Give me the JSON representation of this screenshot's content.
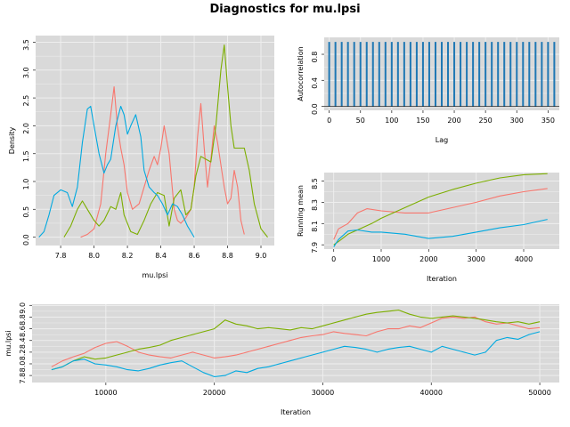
{
  "title": "Diagnostics for mu.lpsi",
  "colors": {
    "chain1": "#f8766d",
    "chain2": "#7cae00",
    "chain3": "#00a9e0",
    "acf": "#1f78b4",
    "panel_bg": "#d9d9d9",
    "grid": "#eeeeee"
  },
  "chart_data": [
    {
      "type": "line",
      "panel": "density",
      "xlabel": "mu.lpsi",
      "ylabel": "Density",
      "xlim": [
        7.65,
        9.08
      ],
      "ylim": [
        -0.15,
        3.62
      ],
      "xticks": [
        "7.8",
        "8.0",
        "8.2",
        "8.4",
        "8.6",
        "8.8",
        "9.0"
      ],
      "yticks": [
        "0.0",
        "0.5",
        "1.0",
        "1.5",
        "2.0",
        "2.5",
        "3.0",
        "3.5"
      ],
      "grid": true,
      "series": [
        {
          "color": "#f8766d",
          "x": [
            7.92,
            7.96,
            8.0,
            8.04,
            8.07,
            8.1,
            8.12,
            8.14,
            8.16,
            8.18,
            8.2,
            8.23,
            8.27,
            8.3,
            8.33,
            8.36,
            8.38,
            8.4,
            8.42,
            8.45,
            8.48,
            8.5,
            8.52,
            8.55,
            8.58,
            8.6,
            8.62,
            8.64,
            8.66,
            8.68,
            8.7,
            8.72,
            8.74,
            8.76,
            8.78,
            8.8,
            8.82,
            8.84,
            8.86,
            8.88,
            8.9
          ],
          "y": [
            0.0,
            0.05,
            0.15,
            0.6,
            1.5,
            2.2,
            2.7,
            2.0,
            1.6,
            1.3,
            0.8,
            0.5,
            0.6,
            0.9,
            1.2,
            1.45,
            1.3,
            1.6,
            2.0,
            1.5,
            0.5,
            0.3,
            0.25,
            0.35,
            0.5,
            0.9,
            1.8,
            2.4,
            1.6,
            0.9,
            1.4,
            2.0,
            1.7,
            1.3,
            0.9,
            0.6,
            0.7,
            1.2,
            0.9,
            0.3,
            0.05
          ]
        },
        {
          "color": "#7cae00",
          "x": [
            7.82,
            7.86,
            7.9,
            7.93,
            7.96,
            8.0,
            8.03,
            8.06,
            8.1,
            8.13,
            8.16,
            8.18,
            8.22,
            8.26,
            8.3,
            8.34,
            8.38,
            8.42,
            8.45,
            8.48,
            8.52,
            8.55,
            8.58,
            8.61,
            8.64,
            8.67,
            8.7,
            8.73,
            8.76,
            8.78,
            8.8,
            8.82,
            8.84,
            8.87,
            8.9,
            8.93,
            8.96,
            9.0,
            9.04
          ],
          "y": [
            0.0,
            0.2,
            0.5,
            0.65,
            0.5,
            0.3,
            0.2,
            0.3,
            0.55,
            0.5,
            0.8,
            0.4,
            0.1,
            0.05,
            0.3,
            0.6,
            0.8,
            0.75,
            0.2,
            0.7,
            0.85,
            0.4,
            0.5,
            1.1,
            1.45,
            1.4,
            1.35,
            2.0,
            3.0,
            3.45,
            2.7,
            2.0,
            1.6,
            1.6,
            1.6,
            1.2,
            0.6,
            0.15,
            0.0
          ]
        },
        {
          "color": "#00a9e0",
          "x": [
            7.67,
            7.7,
            7.73,
            7.76,
            7.8,
            7.84,
            7.87,
            7.9,
            7.93,
            7.96,
            7.98,
            8.0,
            8.03,
            8.06,
            8.08,
            8.1,
            8.13,
            8.16,
            8.18,
            8.2,
            8.22,
            8.25,
            8.28,
            8.3,
            8.33,
            8.36,
            8.38,
            8.41,
            8.44,
            8.47,
            8.5,
            8.53,
            8.56,
            8.6
          ],
          "y": [
            0.0,
            0.1,
            0.4,
            0.75,
            0.85,
            0.8,
            0.55,
            0.9,
            1.7,
            2.3,
            2.35,
            2.0,
            1.5,
            1.15,
            1.3,
            1.4,
            2.0,
            2.35,
            2.2,
            1.85,
            2.0,
            2.2,
            1.8,
            1.2,
            0.9,
            0.8,
            0.75,
            0.6,
            0.4,
            0.6,
            0.55,
            0.4,
            0.2,
            0.0
          ]
        }
      ]
    },
    {
      "type": "bar",
      "panel": "autocorrelation",
      "xlabel": "Lag",
      "ylabel": "Autocorrelation",
      "xlim": [
        -8,
        368
      ],
      "ylim": [
        -0.06,
        1.06
      ],
      "xticks": [
        "0",
        "50",
        "100",
        "150",
        "200",
        "250",
        "300",
        "350"
      ],
      "yticks": [
        "0.0",
        "0.4",
        "0.8"
      ],
      "ytick_values": [
        0,
        0.4,
        0.8
      ],
      "grid": true,
      "lag_step": 10,
      "lags": 37,
      "value": 0.99
    },
    {
      "type": "line",
      "panel": "running_mean",
      "xlabel": "Iteration",
      "ylabel": "Running mean",
      "xlim": [
        -200,
        4750
      ],
      "ylim": [
        7.86,
        8.58
      ],
      "xticks": [
        "0",
        "1000",
        "2000",
        "3000",
        "4000"
      ],
      "yticks": [
        "7.9",
        "8.1",
        "8.3",
        "8.5"
      ],
      "grid": true,
      "series": [
        {
          "color": "#f8766d",
          "x": [
            0,
            100,
            300,
            500,
            700,
            1000,
            1500,
            2000,
            2500,
            3000,
            3500,
            4000,
            4500
          ],
          "y": [
            7.95,
            8.05,
            8.1,
            8.2,
            8.24,
            8.22,
            8.2,
            8.2,
            8.25,
            8.3,
            8.36,
            8.4,
            8.43
          ]
        },
        {
          "color": "#7cae00",
          "x": [
            0,
            100,
            300,
            500,
            800,
            1000,
            1500,
            2000,
            2500,
            3000,
            3500,
            4000,
            4500
          ],
          "y": [
            7.9,
            7.93,
            8.0,
            8.04,
            8.1,
            8.15,
            8.25,
            8.35,
            8.42,
            8.48,
            8.53,
            8.56,
            8.57
          ]
        },
        {
          "color": "#00a9e0",
          "x": [
            0,
            100,
            300,
            500,
            800,
            1000,
            1500,
            2000,
            2500,
            3000,
            3500,
            4000,
            4500
          ],
          "y": [
            7.88,
            7.95,
            8.03,
            8.04,
            8.02,
            8.02,
            8.0,
            7.96,
            7.98,
            8.02,
            8.06,
            8.09,
            8.14
          ]
        }
      ]
    },
    {
      "type": "line",
      "panel": "trace",
      "xlabel": "Iteration",
      "ylabel": "mu.lpsi",
      "xlim": [
        3200,
        51800
      ],
      "ylim": [
        7.68,
        9.02
      ],
      "xticks": [
        "10000",
        "20000",
        "30000",
        "40000",
        "50000"
      ],
      "yticks": [
        "7.8",
        "8.0",
        "8.2",
        "8.4",
        "8.6",
        "8.8",
        "9.0"
      ],
      "grid": true,
      "series": [
        {
          "color": "#f8766d",
          "x": [
            5000,
            6000,
            7000,
            8000,
            9000,
            10000,
            11000,
            12000,
            13000,
            14000,
            15000,
            16000,
            17000,
            18000,
            19000,
            20000,
            21000,
            22000,
            23000,
            24000,
            25000,
            26000,
            27000,
            28000,
            29000,
            30000,
            31000,
            32000,
            33000,
            34000,
            35000,
            36000,
            37000,
            38000,
            39000,
            40000,
            41000,
            42000,
            43000,
            44000,
            45000,
            46000,
            47000,
            48000,
            49000,
            50000
          ],
          "y": [
            7.95,
            8.05,
            8.12,
            8.18,
            8.28,
            8.35,
            8.38,
            8.3,
            8.2,
            8.15,
            8.12,
            8.1,
            8.15,
            8.2,
            8.15,
            8.1,
            8.12,
            8.15,
            8.2,
            8.25,
            8.3,
            8.35,
            8.4,
            8.45,
            8.48,
            8.5,
            8.55,
            8.52,
            8.5,
            8.48,
            8.55,
            8.6,
            8.6,
            8.65,
            8.62,
            8.7,
            8.78,
            8.8,
            8.78,
            8.8,
            8.72,
            8.68,
            8.7,
            8.65,
            8.6,
            8.62
          ]
        },
        {
          "color": "#7cae00",
          "x": [
            5000,
            6000,
            7000,
            8000,
            9000,
            10000,
            11000,
            12000,
            13000,
            14000,
            15000,
            16000,
            17000,
            18000,
            19000,
            20000,
            21000,
            22000,
            23000,
            24000,
            25000,
            26000,
            27000,
            28000,
            29000,
            30000,
            31000,
            32000,
            33000,
            34000,
            35000,
            36000,
            37000,
            38000,
            39000,
            40000,
            41000,
            42000,
            43000,
            44000,
            45000,
            46000,
            47000,
            48000,
            49000,
            50000
          ],
          "y": [
            7.9,
            7.95,
            8.05,
            8.12,
            8.08,
            8.1,
            8.15,
            8.2,
            8.25,
            8.28,
            8.32,
            8.4,
            8.45,
            8.5,
            8.55,
            8.6,
            8.75,
            8.68,
            8.65,
            8.6,
            8.62,
            8.6,
            8.58,
            8.62,
            8.6,
            8.65,
            8.7,
            8.75,
            8.8,
            8.85,
            8.88,
            8.9,
            8.92,
            8.85,
            8.8,
            8.78,
            8.8,
            8.82,
            8.8,
            8.78,
            8.75,
            8.72,
            8.7,
            8.72,
            8.68,
            8.72
          ]
        },
        {
          "color": "#00a9e0",
          "x": [
            5000,
            6000,
            7000,
            8000,
            9000,
            10000,
            11000,
            12000,
            13000,
            14000,
            15000,
            16000,
            17000,
            18000,
            19000,
            20000,
            21000,
            22000,
            23000,
            24000,
            25000,
            26000,
            27000,
            28000,
            29000,
            30000,
            31000,
            32000,
            33000,
            34000,
            35000,
            36000,
            37000,
            38000,
            39000,
            40000,
            41000,
            42000,
            43000,
            44000,
            45000,
            46000,
            47000,
            48000,
            49000,
            50000
          ],
          "y": [
            7.9,
            7.95,
            8.05,
            8.08,
            8.0,
            7.98,
            7.95,
            7.9,
            7.88,
            7.92,
            7.98,
            8.02,
            8.05,
            7.95,
            7.85,
            7.78,
            7.8,
            7.88,
            7.85,
            7.92,
            7.95,
            8.0,
            8.05,
            8.1,
            8.15,
            8.2,
            8.25,
            8.3,
            8.28,
            8.25,
            8.2,
            8.25,
            8.28,
            8.3,
            8.25,
            8.2,
            8.3,
            8.25,
            8.2,
            8.15,
            8.2,
            8.4,
            8.45,
            8.42,
            8.5,
            8.55
          ]
        }
      ]
    }
  ]
}
